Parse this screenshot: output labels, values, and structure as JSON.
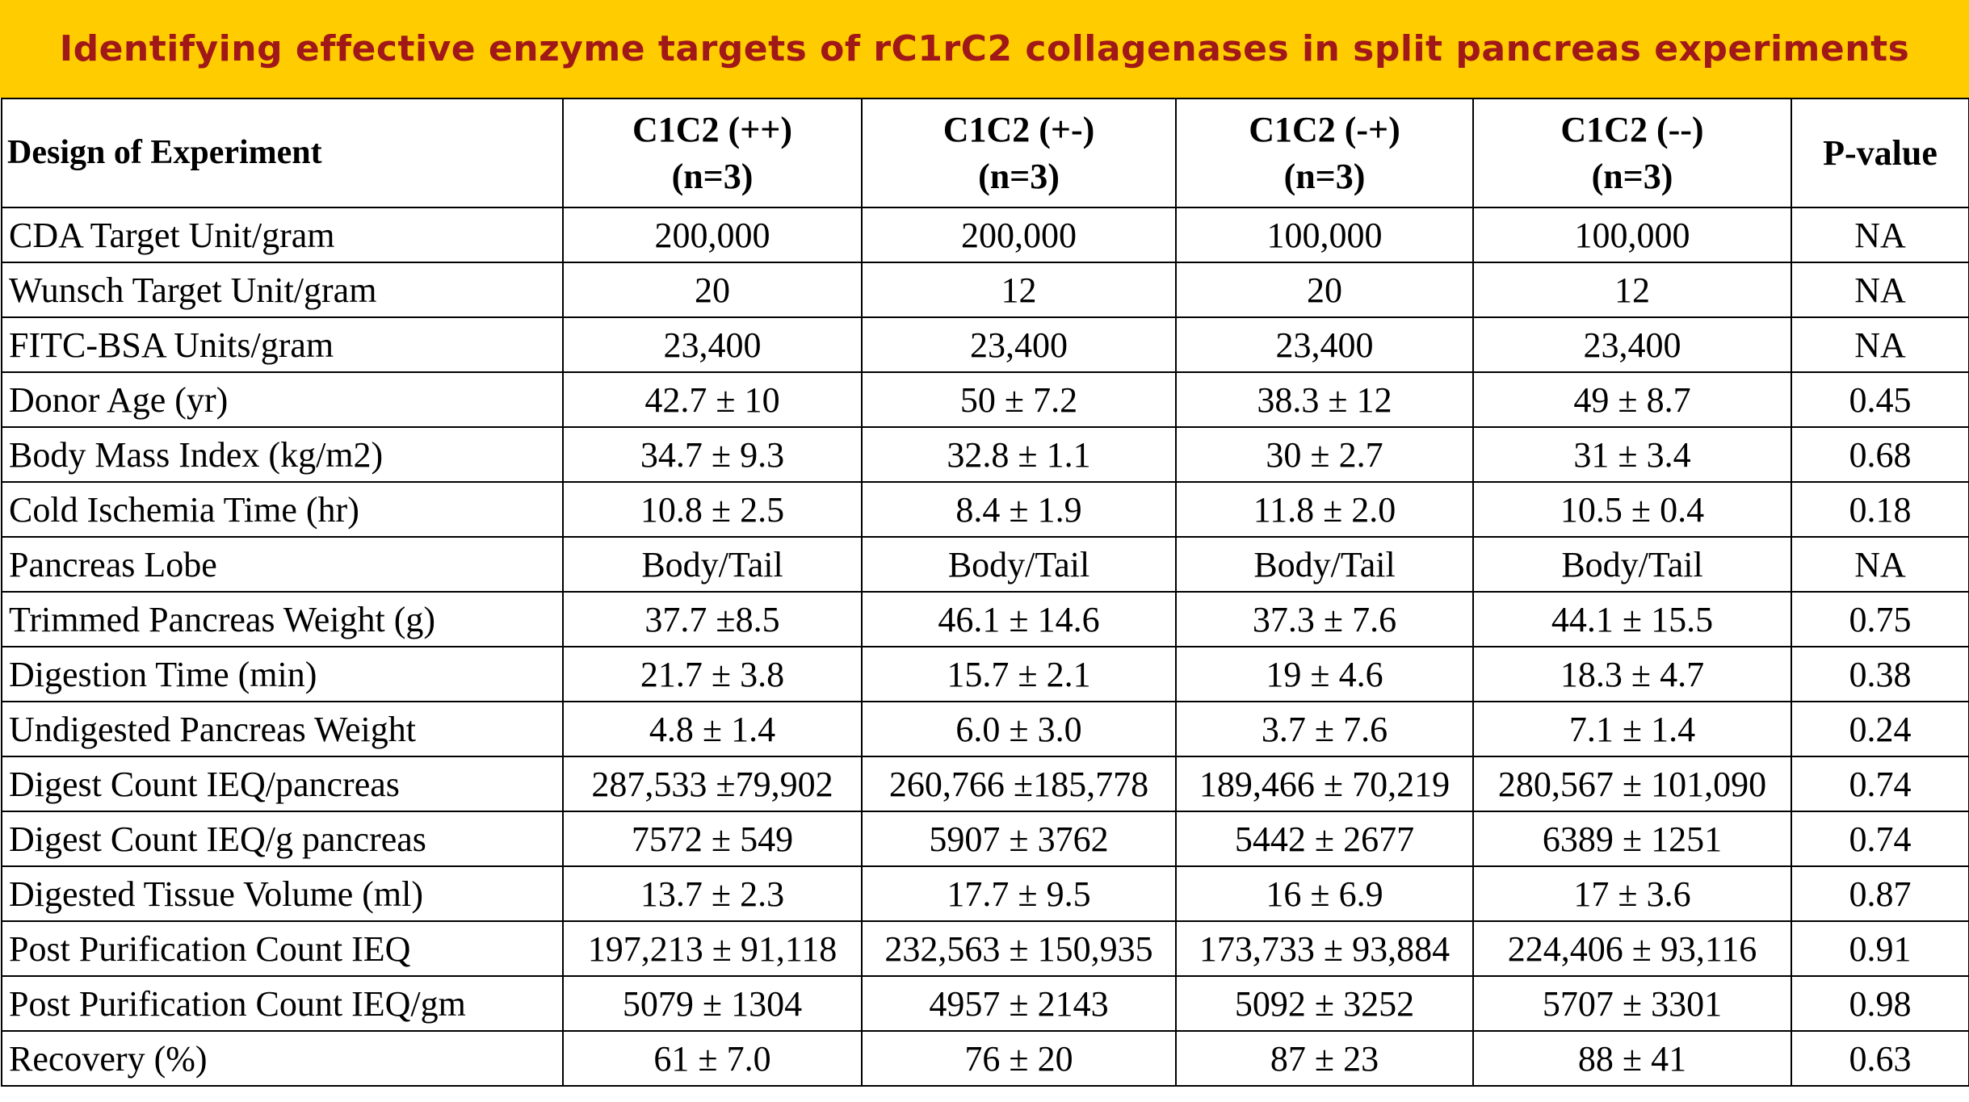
{
  "header": {
    "title": "Identifying effective enzyme targets of rC1rC2 collagenases in split pancreas experiments"
  },
  "table": {
    "corner": "Design of Experiment",
    "columns": [
      {
        "name": "C1C2 (++)",
        "n": "(n=3)"
      },
      {
        "name": "C1C2 (+-)",
        "n": "(n=3)"
      },
      {
        "name": "C1C2 (-+)",
        "n": "(n=3)"
      },
      {
        "name": "C1C2 (--)",
        "n": "(n=3)"
      },
      {
        "name": "P-value"
      }
    ],
    "rows": [
      [
        "CDA Target Unit/gram",
        "200,000",
        "200,000",
        "100,000",
        "100,000",
        "NA"
      ],
      [
        "Wunsch Target Unit/gram",
        "20",
        "12",
        "20",
        "12",
        "NA"
      ],
      [
        "FITC-BSA Units/gram",
        "23,400",
        "23,400",
        "23,400",
        "23,400",
        "NA"
      ],
      [
        "Donor Age (yr)",
        "42.7 ± 10",
        "50 ± 7.2",
        "38.3 ± 12",
        "49 ± 8.7",
        "0.45"
      ],
      [
        "Body Mass Index (kg/m2)",
        "34.7 ± 9.3",
        "32.8 ± 1.1",
        "30 ± 2.7",
        "31 ± 3.4",
        "0.68"
      ],
      [
        "Cold Ischemia Time (hr)",
        "10.8 ± 2.5",
        "8.4 ± 1.9",
        "11.8 ± 2.0",
        "10.5 ± 0.4",
        "0.18"
      ],
      [
        "Pancreas Lobe",
        "Body/Tail",
        "Body/Tail",
        "Body/Tail",
        "Body/Tail",
        "NA"
      ],
      [
        "Trimmed Pancreas Weight (g)",
        "37.7 ±8.5",
        "46.1 ± 14.6",
        "37.3 ± 7.6",
        "44.1 ± 15.5",
        "0.75"
      ],
      [
        "Digestion Time (min)",
        "21.7 ± 3.8",
        "15.7 ± 2.1",
        "19 ± 4.6",
        "18.3 ± 4.7",
        "0.38"
      ],
      [
        "Undigested Pancreas Weight",
        "4.8 ± 1.4",
        "6.0 ± 3.0",
        "3.7 ± 7.6",
        "7.1 ± 1.4",
        "0.24"
      ],
      [
        "Digest Count IEQ/pancreas",
        "287,533 ±79,902",
        "260,766 ±185,778",
        "189,466 ± 70,219",
        "280,567 ± 101,090",
        "0.74"
      ],
      [
        "Digest Count IEQ/g pancreas",
        "7572 ± 549",
        "5907 ± 3762",
        "5442 ± 2677",
        "6389 ± 1251",
        "0.74"
      ],
      [
        "Digested Tissue Volume (ml)",
        "13.7 ± 2.3",
        "17.7 ± 9.5",
        "16 ± 6.9",
        "17 ± 3.6",
        "0.87"
      ],
      [
        "Post Purification Count IEQ",
        "197,213 ± 91,118",
        "232,563 ± 150,935",
        "173,733 ± 93,884",
        "224,406 ± 93,116",
        "0.91"
      ],
      [
        "Post Purification Count IEQ/gm",
        "5079 ± 1304",
        "4957 ± 2143",
        "5092 ± 3252",
        "5707 ± 3301",
        "0.98"
      ],
      [
        "Recovery (%)",
        "61 ± 7.0",
        "76 ± 20",
        "87 ± 23",
        "88 ± 41",
        "0.63"
      ]
    ]
  }
}
